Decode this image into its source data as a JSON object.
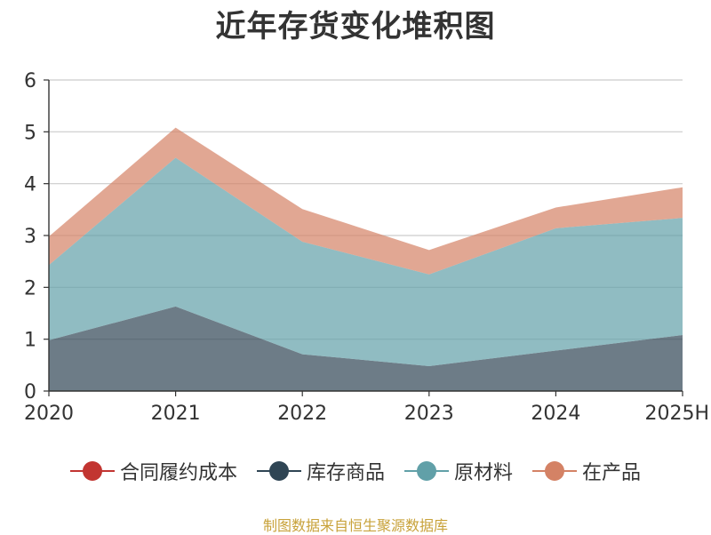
{
  "chart_data": {
    "type": "area",
    "stacked": true,
    "title": "近年存货变化堆积图",
    "ylabel": "",
    "categories": [
      "2020",
      "2021",
      "2022",
      "2023",
      "2024",
      "2025H"
    ],
    "ylim": [
      0,
      6
    ],
    "yticks": [
      "0",
      "1",
      "2",
      "3",
      "4",
      "5",
      "6"
    ],
    "grid": true,
    "legend_position": "bottom",
    "series": [
      {
        "name": "合同履约成本",
        "color": "#c23531",
        "values": [
          0,
          0,
          0,
          0,
          0,
          0
        ]
      },
      {
        "name": "库存商品",
        "color": "#2f4554",
        "values": [
          0.98,
          1.63,
          0.71,
          0.48,
          0.78,
          1.08
        ]
      },
      {
        "name": "原材料",
        "color": "#61a0a8",
        "values": [
          1.45,
          2.87,
          2.17,
          1.77,
          2.36,
          2.26
        ]
      },
      {
        "name": "在产品",
        "color": "#d48265",
        "values": [
          0.55,
          0.58,
          0.63,
          0.47,
          0.4,
          0.59
        ]
      }
    ]
  },
  "source_note": "制图数据来自恒生聚源数据库"
}
